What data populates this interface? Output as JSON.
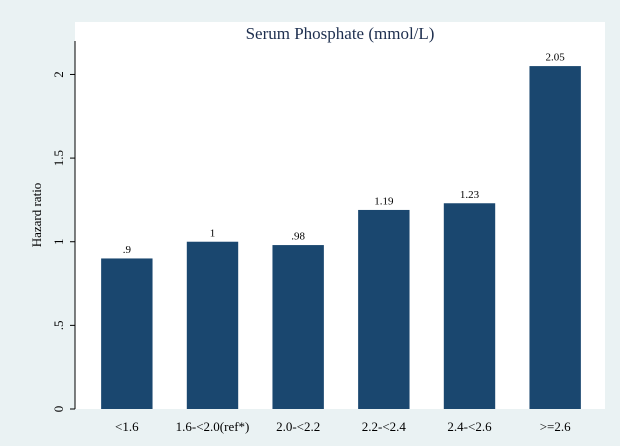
{
  "chart_data": {
    "type": "bar",
    "title": "Serum Phosphate (mmol/L)",
    "y_label": "Hazard ratio",
    "categories": [
      "<1.6",
      "1.6-<2.0(ref*)",
      "2.0-<2.2",
      "2.2-<2.4",
      "2.4-<2.6",
      ">=2.6"
    ],
    "values": [
      0.9,
      1,
      0.98,
      1.19,
      1.23,
      2.05
    ],
    "value_labels": [
      ".9",
      "1",
      ".98",
      "1.19",
      "1.23",
      "2.05"
    ],
    "color": "#1a476f",
    "ylim": [
      0,
      2.2
    ],
    "yticks": [
      0,
      {
        "value": 0.5,
        "label": ".5"
      },
      1,
      1.5,
      2
    ],
    "grid": false
  }
}
